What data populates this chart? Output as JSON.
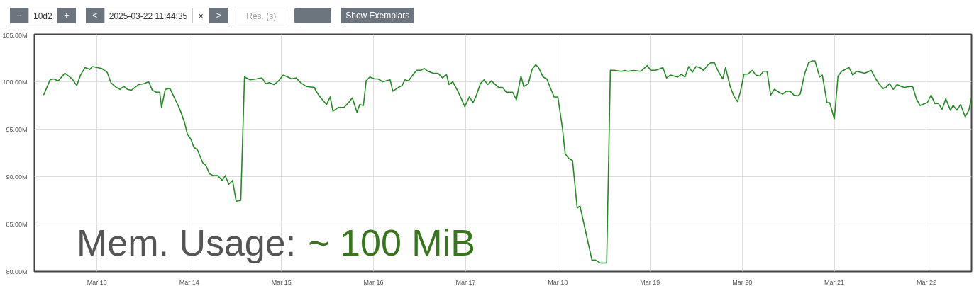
{
  "chart_data": {
    "type": "line",
    "xlim": [
      "2025-03-12T07:41",
      "2025-03-22T11:44"
    ],
    "ylim": [
      80,
      105
    ],
    "xticks": [
      {
        "value": "2025-03-13",
        "label": "Mar 13"
      },
      {
        "value": "2025-03-14",
        "label": "Mar 14"
      },
      {
        "value": "2025-03-15",
        "label": "Mar 15"
      },
      {
        "value": "2025-03-16",
        "label": "Mar 16"
      },
      {
        "value": "2025-03-17",
        "label": "Mar 17"
      },
      {
        "value": "2025-03-18",
        "label": "Mar 18"
      },
      {
        "value": "2025-03-19",
        "label": "Mar 19"
      },
      {
        "value": "2025-03-20",
        "label": "Mar 20"
      },
      {
        "value": "2025-03-21",
        "label": "Mar 21"
      },
      {
        "value": "2025-03-22",
        "label": "Mar 22"
      }
    ],
    "yticks": [
      {
        "value": 80,
        "label": "80.00M"
      },
      {
        "value": 85,
        "label": "85.00M"
      },
      {
        "value": 90,
        "label": "90.00M"
      },
      {
        "value": 95,
        "label": "95.00M"
      },
      {
        "value": 100,
        "label": "100.00M"
      },
      {
        "value": 105,
        "label": "105.00M"
      }
    ],
    "grid": true,
    "marker": "none",
    "line_style": "solid",
    "annotations": [
      "Mem. Usage:",
      "~ 100 MiB",
      "−",
      "10d2",
      "+",
      "<",
      "2025-03-22 11:44:35",
      "×",
      ">",
      "Res. (s)",
      "Show Exemplars"
    ],
    "series": [
      {
        "color": "#228b22",
        "x": [
          "2025-03-12T10:05",
          "2025-03-12T11:46",
          "2025-03-12T12:43",
          "2025-03-12T13:55",
          "2025-03-12T15:36",
          "2025-03-12T17:31",
          "2025-03-12T18:43",
          "2025-03-12T19:41",
          "2025-03-12T20:53",
          "2025-03-12T22:05",
          "2025-03-12T22:48",
          "2025-03-13T01:12",
          "2025-03-13T02:38",
          "2025-03-13T03:36",
          "2025-03-13T05:02",
          "2025-03-13T06:00",
          "2025-03-13T06:58",
          "2025-03-13T07:55",
          "2025-03-13T08:53",
          "2025-03-13T10:48",
          "2025-03-13T12:14",
          "2025-03-13T13:26",
          "2025-03-13T14:24",
          "2025-03-13T15:22",
          "2025-03-13T16:19",
          "2025-03-13T16:48",
          "2025-03-13T17:46",
          "2025-03-13T18:58",
          "2025-03-13T19:55",
          "2025-03-13T21:07",
          "2025-03-13T21:50",
          "2025-03-13T22:48",
          "2025-03-13T23:31",
          "2025-03-14T00:29",
          "2025-03-14T01:12",
          "2025-03-14T02:10",
          "2025-03-14T03:36",
          "2025-03-14T04:19",
          "2025-03-14T05:17",
          "2025-03-14T06:14",
          "2025-03-14T07:26",
          "2025-03-14T08:38",
          "2025-03-14T09:22",
          "2025-03-14T10:19",
          "2025-03-14T11:17",
          "2025-03-14T12:14",
          "2025-03-14T13:26",
          "2025-03-14T14:24",
          "2025-03-14T15:50",
          "2025-03-14T17:31",
          "2025-03-14T18:58",
          "2025-03-14T19:55",
          "2025-03-14T20:53",
          "2025-03-14T22:05",
          "2025-03-14T23:17",
          "2025-03-15T00:29",
          "2025-03-15T01:41",
          "2025-03-15T02:38",
          "2025-03-15T03:50",
          "2025-03-15T05:02",
          "2025-03-15T06:29",
          "2025-03-15T08:38",
          "2025-03-15T08:53",
          "2025-03-15T10:05",
          "2025-03-15T11:46",
          "2025-03-15T12:43",
          "2025-03-15T13:26",
          "2025-03-15T14:53",
          "2025-03-15T16:19",
          "2025-03-15T17:31",
          "2025-03-15T18:29",
          "2025-03-15T19:41",
          "2025-03-15T20:24",
          "2025-03-15T21:22",
          "2025-03-15T22:05",
          "2025-03-15T23:02",
          "2025-03-16T00:14",
          "2025-03-16T01:12",
          "2025-03-16T02:24",
          "2025-03-16T04:19",
          "2025-03-16T05:02",
          "2025-03-16T06:29",
          "2025-03-16T07:26",
          "2025-03-16T08:10",
          "2025-03-16T09:07",
          "2025-03-16T10:34",
          "2025-03-16T11:17",
          "2025-03-16T12:14",
          "2025-03-16T13:12",
          "2025-03-16T14:10",
          "2025-03-16T15:36",
          "2025-03-16T16:48",
          "2025-03-16T18:00",
          "2025-03-16T18:58",
          "2025-03-16T19:41",
          "2025-03-16T20:38",
          "2025-03-16T22:05",
          "2025-03-16T23:46",
          "2025-03-17T00:58",
          "2025-03-17T01:55",
          "2025-03-17T02:38",
          "2025-03-17T03:50",
          "2025-03-17T04:48",
          "2025-03-17T05:46",
          "2025-03-17T06:43",
          "2025-03-17T07:12",
          "2025-03-17T08:38",
          "2025-03-17T09:36",
          "2025-03-17T10:34",
          "2025-03-17T12:14",
          "2025-03-17T13:12",
          "2025-03-17T14:24",
          "2025-03-17T15:07",
          "2025-03-17T16:19",
          "2025-03-17T17:17",
          "2025-03-17T18:14",
          "2025-03-17T18:58",
          "2025-03-17T20:10",
          "2025-03-17T21:07",
          "2025-03-17T23:02",
          "2025-03-18T00:00",
          "2025-03-18T01:12",
          "2025-03-18T01:55",
          "2025-03-18T02:53",
          "2025-03-18T03:50",
          "2025-03-18T05:02",
          "2025-03-18T05:46",
          "2025-03-18T08:53",
          "2025-03-18T09:50",
          "2025-03-18T11:02",
          "2025-03-18T12:43",
          "2025-03-18T13:41",
          "2025-03-18T14:53",
          "2025-03-18T16:34",
          "2025-03-18T17:31",
          "2025-03-18T18:14",
          "2025-03-18T19:41",
          "2025-03-18T21:36",
          "2025-03-18T23:17",
          "2025-03-19T00:14",
          "2025-03-19T01:12",
          "2025-03-19T02:10",
          "2025-03-19T03:22",
          "2025-03-19T04:19",
          "2025-03-19T05:17",
          "2025-03-19T07:12",
          "2025-03-19T08:10",
          "2025-03-19T09:07",
          "2025-03-19T10:05",
          "2025-03-19T11:02",
          "2025-03-19T12:00",
          "2025-03-19T12:58",
          "2025-03-19T13:55",
          "2025-03-19T15:07",
          "2025-03-19T15:50",
          "2025-03-19T16:48",
          "2025-03-19T17:46",
          "2025-03-19T18:58",
          "2025-03-19T19:41",
          "2025-03-19T20:53",
          "2025-03-19T21:50",
          "2025-03-19T22:48",
          "2025-03-19T23:31",
          "2025-03-20T00:29",
          "2025-03-20T01:26",
          "2025-03-20T02:38",
          "2025-03-20T03:36",
          "2025-03-20T04:34",
          "2025-03-20T05:31",
          "2025-03-20T06:29",
          "2025-03-20T07:26",
          "2025-03-20T08:24",
          "2025-03-20T09:36",
          "2025-03-20T10:34",
          "2025-03-20T11:31",
          "2025-03-20T12:29",
          "2025-03-20T13:26",
          "2025-03-20T14:24",
          "2025-03-20T15:07",
          "2025-03-20T16:19",
          "2025-03-20T17:17",
          "2025-03-20T18:14",
          "2025-03-20T18:58",
          "2025-03-20T20:10",
          "2025-03-20T20:53",
          "2025-03-20T22:05",
          "2025-03-20T22:48",
          "2025-03-21T00:00",
          "2025-03-21T00:58",
          "2025-03-21T01:55",
          "2025-03-21T02:53",
          "2025-03-21T03:50",
          "2025-03-21T04:48",
          "2025-03-21T05:46",
          "2025-03-21T07:55",
          "2025-03-21T09:36",
          "2025-03-21T10:48",
          "2025-03-21T11:46",
          "2025-03-21T12:43",
          "2025-03-21T13:26",
          "2025-03-21T14:24",
          "2025-03-21T15:22",
          "2025-03-21T16:19",
          "2025-03-21T17:31",
          "2025-03-21T18:14",
          "2025-03-21T19:41",
          "2025-03-21T20:24",
          "2025-03-21T21:22",
          "2025-03-21T22:19",
          "2025-03-22T00:14",
          "2025-03-22T01:12",
          "2025-03-22T02:10",
          "2025-03-22T03:07",
          "2025-03-22T04:05",
          "2025-03-22T05:02",
          "2025-03-22T06:14",
          "2025-03-22T06:58",
          "2025-03-22T07:55",
          "2025-03-22T08:53",
          "2025-03-22T10:05",
          "2025-03-22T11:02",
          "2025-03-22T11:44"
        ],
        "values": [
          98.6,
          100.2,
          100.3,
          100.1,
          100.9,
          100.3,
          99.6,
          100.7,
          101.5,
          101.3,
          101.6,
          101.4,
          101.0,
          99.9,
          99.4,
          99.2,
          99.5,
          99.2,
          99.1,
          99.7,
          99.8,
          100.0,
          99.1,
          98.9,
          98.9,
          97.3,
          99.2,
          99.3,
          98.5,
          97.5,
          96.8,
          95.7,
          94.5,
          93.9,
          93.1,
          92.8,
          91.4,
          91.2,
          90.3,
          90.1,
          90.1,
          89.6,
          90.1,
          89.2,
          89.6,
          87.4,
          87.5,
          100.5,
          100.2,
          100.3,
          100.4,
          99.8,
          99.9,
          99.7,
          100.1,
          100.7,
          100.5,
          100.3,
          100.4,
          99.9,
          99.5,
          99.4,
          99.1,
          98.4,
          97.6,
          98.4,
          96.9,
          97.3,
          97.3,
          97.8,
          98.3,
          96.8,
          97.6,
          97.5,
          100.1,
          100.5,
          100.3,
          100.3,
          100.0,
          100.2,
          99.0,
          99.4,
          99.6,
          100.2,
          100.1,
          100.9,
          101.2,
          101.2,
          101.4,
          101.1,
          100.9,
          100.9,
          100.4,
          100.8,
          99.7,
          100.0,
          98.9,
          97.4,
          98.4,
          97.8,
          98.4,
          99.8,
          100.2,
          99.7,
          100.1,
          99.9,
          99.4,
          99.4,
          98.9,
          98.9,
          98.1,
          100.6,
          99.5,
          99.8,
          101.3,
          101.8,
          101.5,
          100.5,
          100.3,
          98.4,
          98.4,
          95.1,
          92.4,
          91.9,
          91.7,
          86.7,
          86.9,
          81.2,
          81.2,
          80.9,
          80.9,
          101.2,
          101.2,
          101.1,
          101.2,
          101.1,
          101.2,
          101.1,
          101.7,
          101.2,
          101.2,
          101.3,
          101.5,
          100.4,
          100.7,
          100.5,
          100.8,
          100.5,
          101.6,
          101.0,
          101.6,
          101.5,
          101.2,
          101.8,
          102.0,
          102.0,
          101.1,
          100.3,
          101.5,
          99.5,
          98.5,
          97.9,
          98.9,
          100.8,
          100.8,
          101.2,
          100.7,
          100.6,
          101.1,
          101.1,
          98.6,
          99.2,
          98.9,
          98.7,
          99.0,
          99.0,
          98.6,
          98.5,
          98.7,
          100.9,
          102.0,
          102.2,
          102.2,
          100.5,
          100.7,
          97.8,
          97.8,
          96.1,
          100.6,
          101.1,
          101.3,
          101.5,
          100.7,
          101.1,
          100.9,
          101.2,
          100.3,
          99.7,
          99.3,
          99.4,
          99.8,
          99.2,
          99.7,
          99.5,
          99.4,
          99.5,
          99.5,
          98.2,
          97.5,
          97.8,
          98.6,
          97.7,
          97.7,
          97.1,
          98.2,
          97.0,
          97.5,
          97.0,
          97.6,
          96.3,
          97.0,
          98.3
        ]
      }
    ]
  }
}
